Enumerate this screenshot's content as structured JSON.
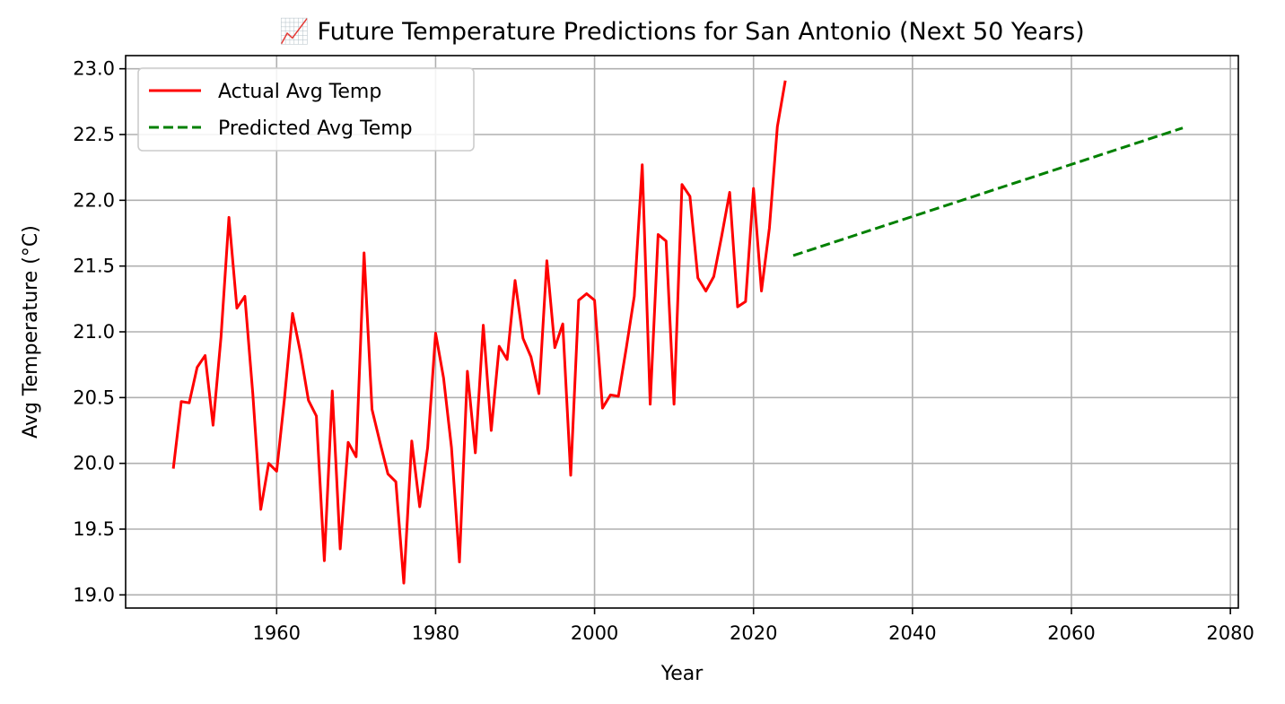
{
  "chart_data": {
    "type": "line",
    "title": "📈 Future Temperature Predictions for San Antonio (Next 50 Years)",
    "xlabel": "Year",
    "ylabel": "Avg Temperature (°C)",
    "xlim": [
      1941,
      2081
    ],
    "ylim": [
      18.9,
      23.1
    ],
    "xticks": [
      1960,
      1980,
      2000,
      2020,
      2040,
      2060,
      2080
    ],
    "yticks": [
      19.0,
      19.5,
      20.0,
      20.5,
      21.0,
      21.5,
      22.0,
      22.5,
      23.0
    ],
    "ytick_labels": [
      "19.0",
      "19.5",
      "20.0",
      "20.5",
      "21.0",
      "21.5",
      "22.0",
      "22.5",
      "23.0"
    ],
    "grid": true,
    "legend_position": "top-left",
    "series": [
      {
        "name": "Actual Avg Temp",
        "color": "#ff0000",
        "style": "solid",
        "x": [
          1947,
          1948,
          1949,
          1950,
          1951,
          1952,
          1953,
          1954,
          1955,
          1956,
          1957,
          1958,
          1959,
          1960,
          1961,
          1962,
          1963,
          1964,
          1965,
          1966,
          1967,
          1968,
          1969,
          1970,
          1971,
          1972,
          1973,
          1974,
          1975,
          1976,
          1977,
          1978,
          1979,
          1980,
          1981,
          1982,
          1983,
          1984,
          1985,
          1986,
          1987,
          1988,
          1989,
          1990,
          1991,
          1992,
          1993,
          1994,
          1995,
          1996,
          1997,
          1998,
          1999,
          2000,
          2001,
          2002,
          2003,
          2004,
          2005,
          2006,
          2007,
          2008,
          2009,
          2010,
          2011,
          2012,
          2013,
          2014,
          2015,
          2016,
          2017,
          2018,
          2019,
          2020,
          2021,
          2022,
          2023,
          2024
        ],
        "values": [
          19.96,
          20.47,
          20.46,
          20.73,
          20.82,
          20.29,
          20.96,
          21.87,
          21.18,
          21.27,
          20.53,
          19.65,
          20.0,
          19.94,
          20.5,
          21.14,
          20.84,
          20.48,
          20.36,
          19.26,
          20.55,
          19.35,
          20.16,
          20.05,
          21.6,
          20.41,
          20.16,
          19.92,
          19.86,
          19.09,
          20.17,
          19.67,
          20.12,
          20.99,
          20.65,
          20.12,
          19.25,
          20.7,
          20.08,
          21.05,
          20.25,
          20.89,
          20.79,
          21.39,
          20.95,
          20.81,
          20.53,
          21.54,
          20.88,
          21.06,
          19.91,
          21.24,
          21.29,
          21.24,
          20.42,
          20.52,
          20.51,
          20.88,
          21.27,
          22.27,
          20.45,
          21.74,
          21.69,
          20.45,
          22.12,
          22.03,
          21.41,
          21.31,
          21.42,
          21.73,
          22.06,
          21.19,
          21.23,
          22.09,
          21.31,
          21.79,
          22.56,
          22.91
        ]
      },
      {
        "name": "Predicted Avg Temp",
        "color": "#008000",
        "style": "dashed",
        "x": [
          2025,
          2074
        ],
        "values": [
          21.58,
          22.55
        ]
      }
    ]
  }
}
